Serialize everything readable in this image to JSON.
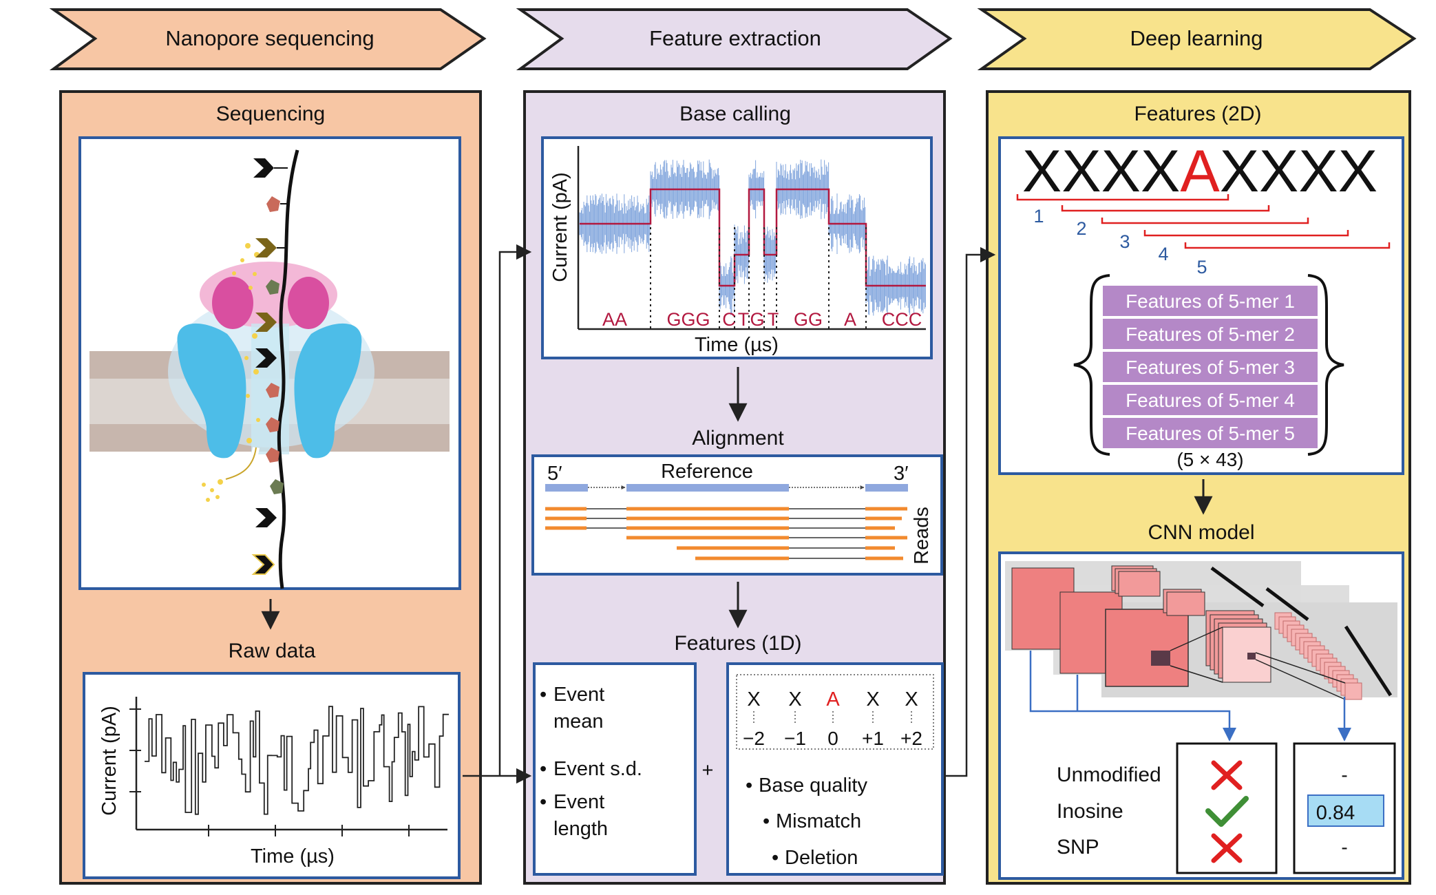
{
  "stages": [
    {
      "label": "Nanopore sequencing",
      "color": "#f7c6a4"
    },
    {
      "label": "Feature extraction",
      "color": "#e6dcec"
    },
    {
      "label": "Deep learning",
      "color": "#f8e38c"
    }
  ],
  "panel_colors": {
    "orange": "#f7c6a4",
    "purple": "#e6dcec",
    "yellow": "#f8e38c",
    "frame_blue": "#2d5aa0"
  },
  "sequencing": {
    "title": "Sequencing",
    "raw_title": "Raw data",
    "raw_ylabel": "Current (pA)",
    "raw_xlabel": "Time (µs)"
  },
  "basecalling": {
    "title": "Base calling",
    "ylabel": "Current (pA)",
    "xlabel": "Time (µs)",
    "bases": [
      "AA",
      "GGG",
      "C",
      "T",
      "G",
      "T",
      "GG",
      "A",
      "CCC"
    ]
  },
  "alignment": {
    "title": "Alignment",
    "five_prime": "5′",
    "three_prime": "3′",
    "reference": "Reference",
    "reads": "Reads"
  },
  "features1d": {
    "title": "Features (1D)",
    "left_items": [
      "Event mean",
      "Event s.d.",
      "Event length"
    ],
    "plus": "+",
    "kmer_letters": [
      "X",
      "X",
      "A",
      "X",
      "X"
    ],
    "kmer_positions": [
      "−2",
      "−1",
      "0",
      "+1",
      "+2"
    ],
    "right_items": [
      "Base quality",
      "Mismatch",
      "Deletion"
    ]
  },
  "features2d": {
    "title": "Features (2D)",
    "seq_left": "XXXX",
    "seq_center": "A",
    "seq_right": "XXXX",
    "window_numbers": [
      "1",
      "2",
      "3",
      "4",
      "5"
    ],
    "rows": [
      "Features of 5-mer 1",
      "Features of 5-mer 2",
      "Features of 5-mer 3",
      "Features of 5-mer 4",
      "Features of 5-mer 5"
    ],
    "dims": "(5 × 43)"
  },
  "cnn": {
    "title": "CNN model",
    "classes": [
      "Unmodified",
      "Inosine",
      "SNP"
    ],
    "class_marks": [
      "cross-icon",
      "check-icon",
      "cross-icon"
    ],
    "scores": [
      "-",
      "0.84",
      "-"
    ]
  }
}
